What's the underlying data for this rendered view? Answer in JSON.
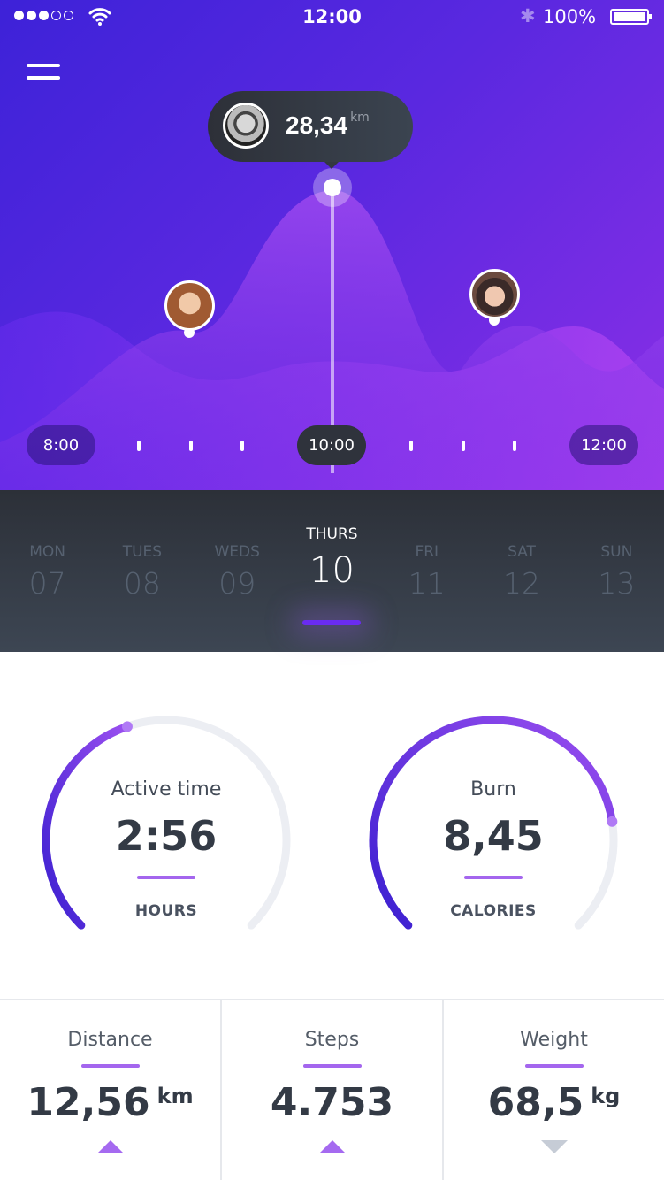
{
  "status_bar": {
    "time": "12:00",
    "battery": "100%",
    "signal_bars": 3,
    "signal_total": 5
  },
  "chart": {
    "tooltip": {
      "value": "28,34",
      "unit": "km"
    },
    "timeline": {
      "start": "8:00",
      "current": "10:00",
      "end": "12:00"
    }
  },
  "days": [
    {
      "name": "MON",
      "date": "07"
    },
    {
      "name": "TUES",
      "date": "08"
    },
    {
      "name": "WEDS",
      "date": "09"
    },
    {
      "name": "THURS",
      "date": "10",
      "active": true
    },
    {
      "name": "FRI",
      "date": "11"
    },
    {
      "name": "SAT",
      "date": "12"
    },
    {
      "name": "SUN",
      "date": "13"
    }
  ],
  "gauges": [
    {
      "label": "Active time",
      "value": "2:56",
      "unit": "HOURS",
      "progress": 0.43
    },
    {
      "label": "Burn",
      "value": "8,45",
      "unit": "CALORIES",
      "progress": 0.8
    }
  ],
  "stats": [
    {
      "label": "Distance",
      "value": "12,56",
      "unit": "km",
      "trend": "up"
    },
    {
      "label": "Steps",
      "value": "4.753",
      "unit": "",
      "trend": "up"
    },
    {
      "label": "Weight",
      "value": "68,5",
      "unit": "kg",
      "trend": "down"
    }
  ],
  "colors": {
    "accent": "#a466ee",
    "gauge_start": "#3a1fd0",
    "gauge_end": "#9b4ff0",
    "track": "#eceef3",
    "dark": "#2f333c"
  }
}
